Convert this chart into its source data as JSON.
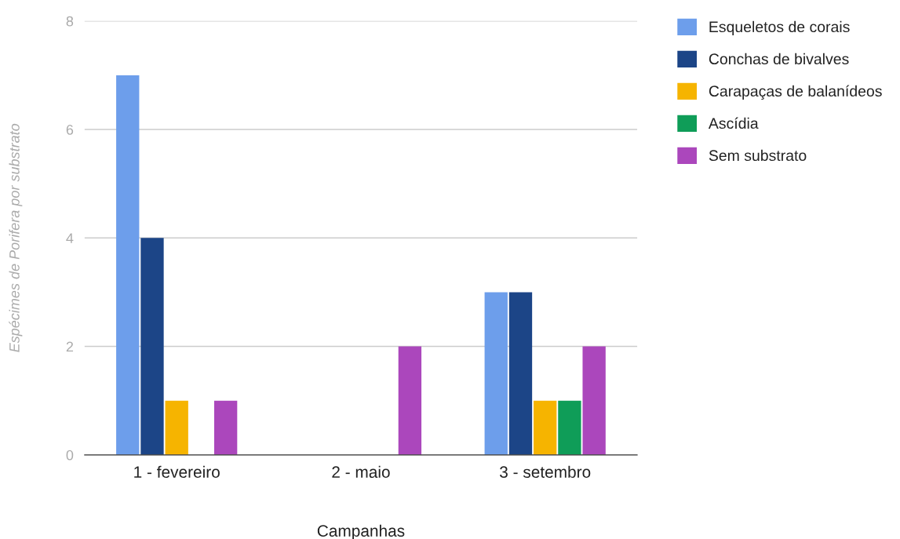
{
  "chart_data": {
    "type": "bar",
    "xlabel": "Campanhas",
    "ylabel": "Espécimes de Porifera por substrato",
    "categories": [
      "1 - fevereiro",
      "2 - maio",
      "3 - setembro"
    ],
    "series": [
      {
        "name": "Esqueletos de corais",
        "color": "#6d9eeb",
        "values": [
          7,
          0,
          3
        ]
      },
      {
        "name": "Conchas de bivalves",
        "color": "#1c4587",
        "values": [
          4,
          0,
          3
        ]
      },
      {
        "name": "Carapaças de balanídeos",
        "color": "#f6b400",
        "values": [
          1,
          0,
          1
        ]
      },
      {
        "name": "Ascídia",
        "color": "#0f9d58",
        "values": [
          0,
          0,
          1
        ]
      },
      {
        "name": "Sem substrato",
        "color": "#ab47bc",
        "values": [
          1,
          2,
          2
        ]
      }
    ],
    "ylim": [
      0,
      8
    ],
    "yticks": [
      0,
      2,
      4,
      6,
      8
    ],
    "grid": "y",
    "legend": "top right"
  }
}
